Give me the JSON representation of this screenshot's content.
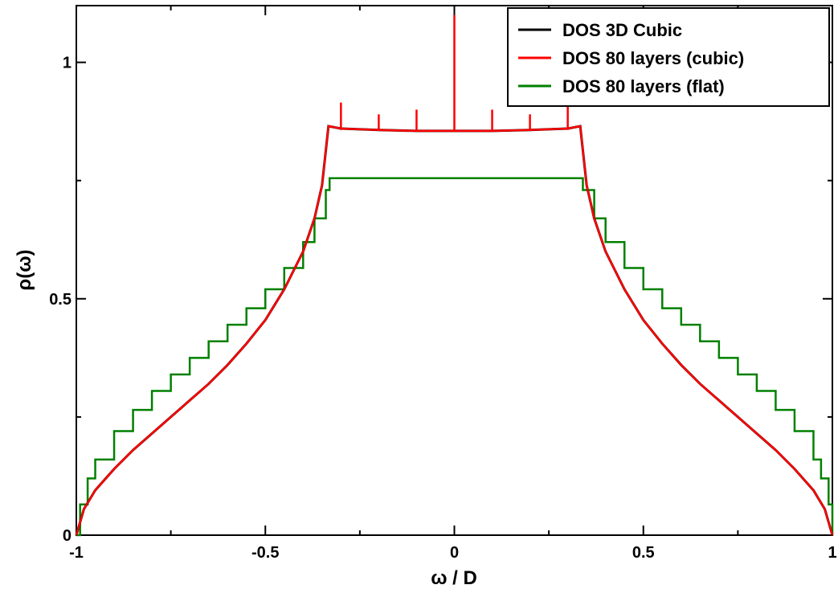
{
  "chart_data": {
    "type": "line",
    "xlabel": "ω / D",
    "ylabel": "ρ(ω)",
    "xlim": [
      -1,
      1
    ],
    "ylim": [
      0,
      1.12
    ],
    "x_ticks": [
      -1,
      -0.5,
      0,
      0.5,
      1
    ],
    "x_tick_labels": [
      "-1",
      "-0.5",
      "0",
      "0.5",
      "1"
    ],
    "y_ticks": [
      0,
      0.5,
      1
    ],
    "y_tick_labels": [
      "0",
      "0.5",
      "1"
    ],
    "grid": false,
    "legend_position": "top-right",
    "series": [
      {
        "name": "DOS 3D Cubic",
        "color": "#000000",
        "x": [
          -1.0,
          -0.98,
          -0.95,
          -0.9,
          -0.85,
          -0.8,
          -0.75,
          -0.7,
          -0.65,
          -0.6,
          -0.55,
          -0.5,
          -0.45,
          -0.4,
          -0.37,
          -0.35,
          -0.333,
          -0.3,
          -0.2,
          -0.1,
          0.0,
          0.1,
          0.2,
          0.3,
          0.333,
          0.35,
          0.37,
          0.4,
          0.45,
          0.5,
          0.55,
          0.6,
          0.65,
          0.7,
          0.75,
          0.8,
          0.85,
          0.9,
          0.95,
          0.98,
          1.0
        ],
        "y": [
          0.0,
          0.055,
          0.095,
          0.14,
          0.18,
          0.215,
          0.25,
          0.285,
          0.32,
          0.36,
          0.405,
          0.455,
          0.52,
          0.6,
          0.67,
          0.74,
          0.865,
          0.86,
          0.857,
          0.855,
          0.855,
          0.855,
          0.857,
          0.86,
          0.865,
          0.74,
          0.67,
          0.6,
          0.52,
          0.455,
          0.405,
          0.36,
          0.32,
          0.285,
          0.25,
          0.215,
          0.18,
          0.14,
          0.095,
          0.055,
          0.0
        ]
      },
      {
        "name": "DOS 80 layers (cubic)",
        "color": "#ff0000",
        "x": [
          -1.0,
          -0.98,
          -0.95,
          -0.9,
          -0.85,
          -0.8,
          -0.75,
          -0.7,
          -0.65,
          -0.6,
          -0.55,
          -0.5,
          -0.45,
          -0.4,
          -0.37,
          -0.35,
          -0.333,
          -0.3,
          -0.2,
          -0.1,
          0.0,
          0.1,
          0.2,
          0.3,
          0.333,
          0.35,
          0.37,
          0.4,
          0.45,
          0.5,
          0.55,
          0.6,
          0.65,
          0.7,
          0.75,
          0.8,
          0.85,
          0.9,
          0.95,
          0.98,
          1.0
        ],
        "y": [
          0.0,
          0.055,
          0.095,
          0.14,
          0.18,
          0.215,
          0.25,
          0.285,
          0.32,
          0.36,
          0.405,
          0.455,
          0.52,
          0.6,
          0.67,
          0.74,
          0.865,
          0.86,
          0.857,
          0.855,
          0.855,
          0.855,
          0.857,
          0.86,
          0.865,
          0.74,
          0.67,
          0.6,
          0.52,
          0.455,
          0.405,
          0.36,
          0.32,
          0.285,
          0.25,
          0.215,
          0.18,
          0.14,
          0.095,
          0.055,
          0.0
        ],
        "peaks": [
          {
            "x": -0.3,
            "y": 0.915
          },
          {
            "x": -0.2,
            "y": 0.89
          },
          {
            "x": -0.1,
            "y": 0.9
          },
          {
            "x": 0.0,
            "y": 1.1
          },
          {
            "x": 0.1,
            "y": 0.9
          },
          {
            "x": 0.2,
            "y": 0.89
          },
          {
            "x": 0.3,
            "y": 0.915
          }
        ]
      },
      {
        "name": "DOS 80 layers (flat)",
        "color": "#008000",
        "x": [
          -1.0,
          -0.99,
          -0.97,
          -0.95,
          -0.9,
          -0.85,
          -0.8,
          -0.75,
          -0.7,
          -0.65,
          -0.6,
          -0.55,
          -0.5,
          -0.45,
          -0.4,
          -0.37,
          -0.34,
          -0.33,
          0.33,
          0.34,
          0.37,
          0.4,
          0.45,
          0.5,
          0.55,
          0.6,
          0.65,
          0.7,
          0.75,
          0.8,
          0.85,
          0.9,
          0.95,
          0.97,
          0.99,
          1.0
        ],
        "y": [
          0.0,
          0.065,
          0.12,
          0.16,
          0.22,
          0.265,
          0.305,
          0.34,
          0.375,
          0.41,
          0.445,
          0.48,
          0.52,
          0.565,
          0.62,
          0.67,
          0.73,
          0.755,
          0.755,
          0.73,
          0.67,
          0.62,
          0.565,
          0.52,
          0.48,
          0.445,
          0.41,
          0.375,
          0.34,
          0.305,
          0.265,
          0.22,
          0.16,
          0.12,
          0.065,
          0.0
        ]
      }
    ]
  }
}
